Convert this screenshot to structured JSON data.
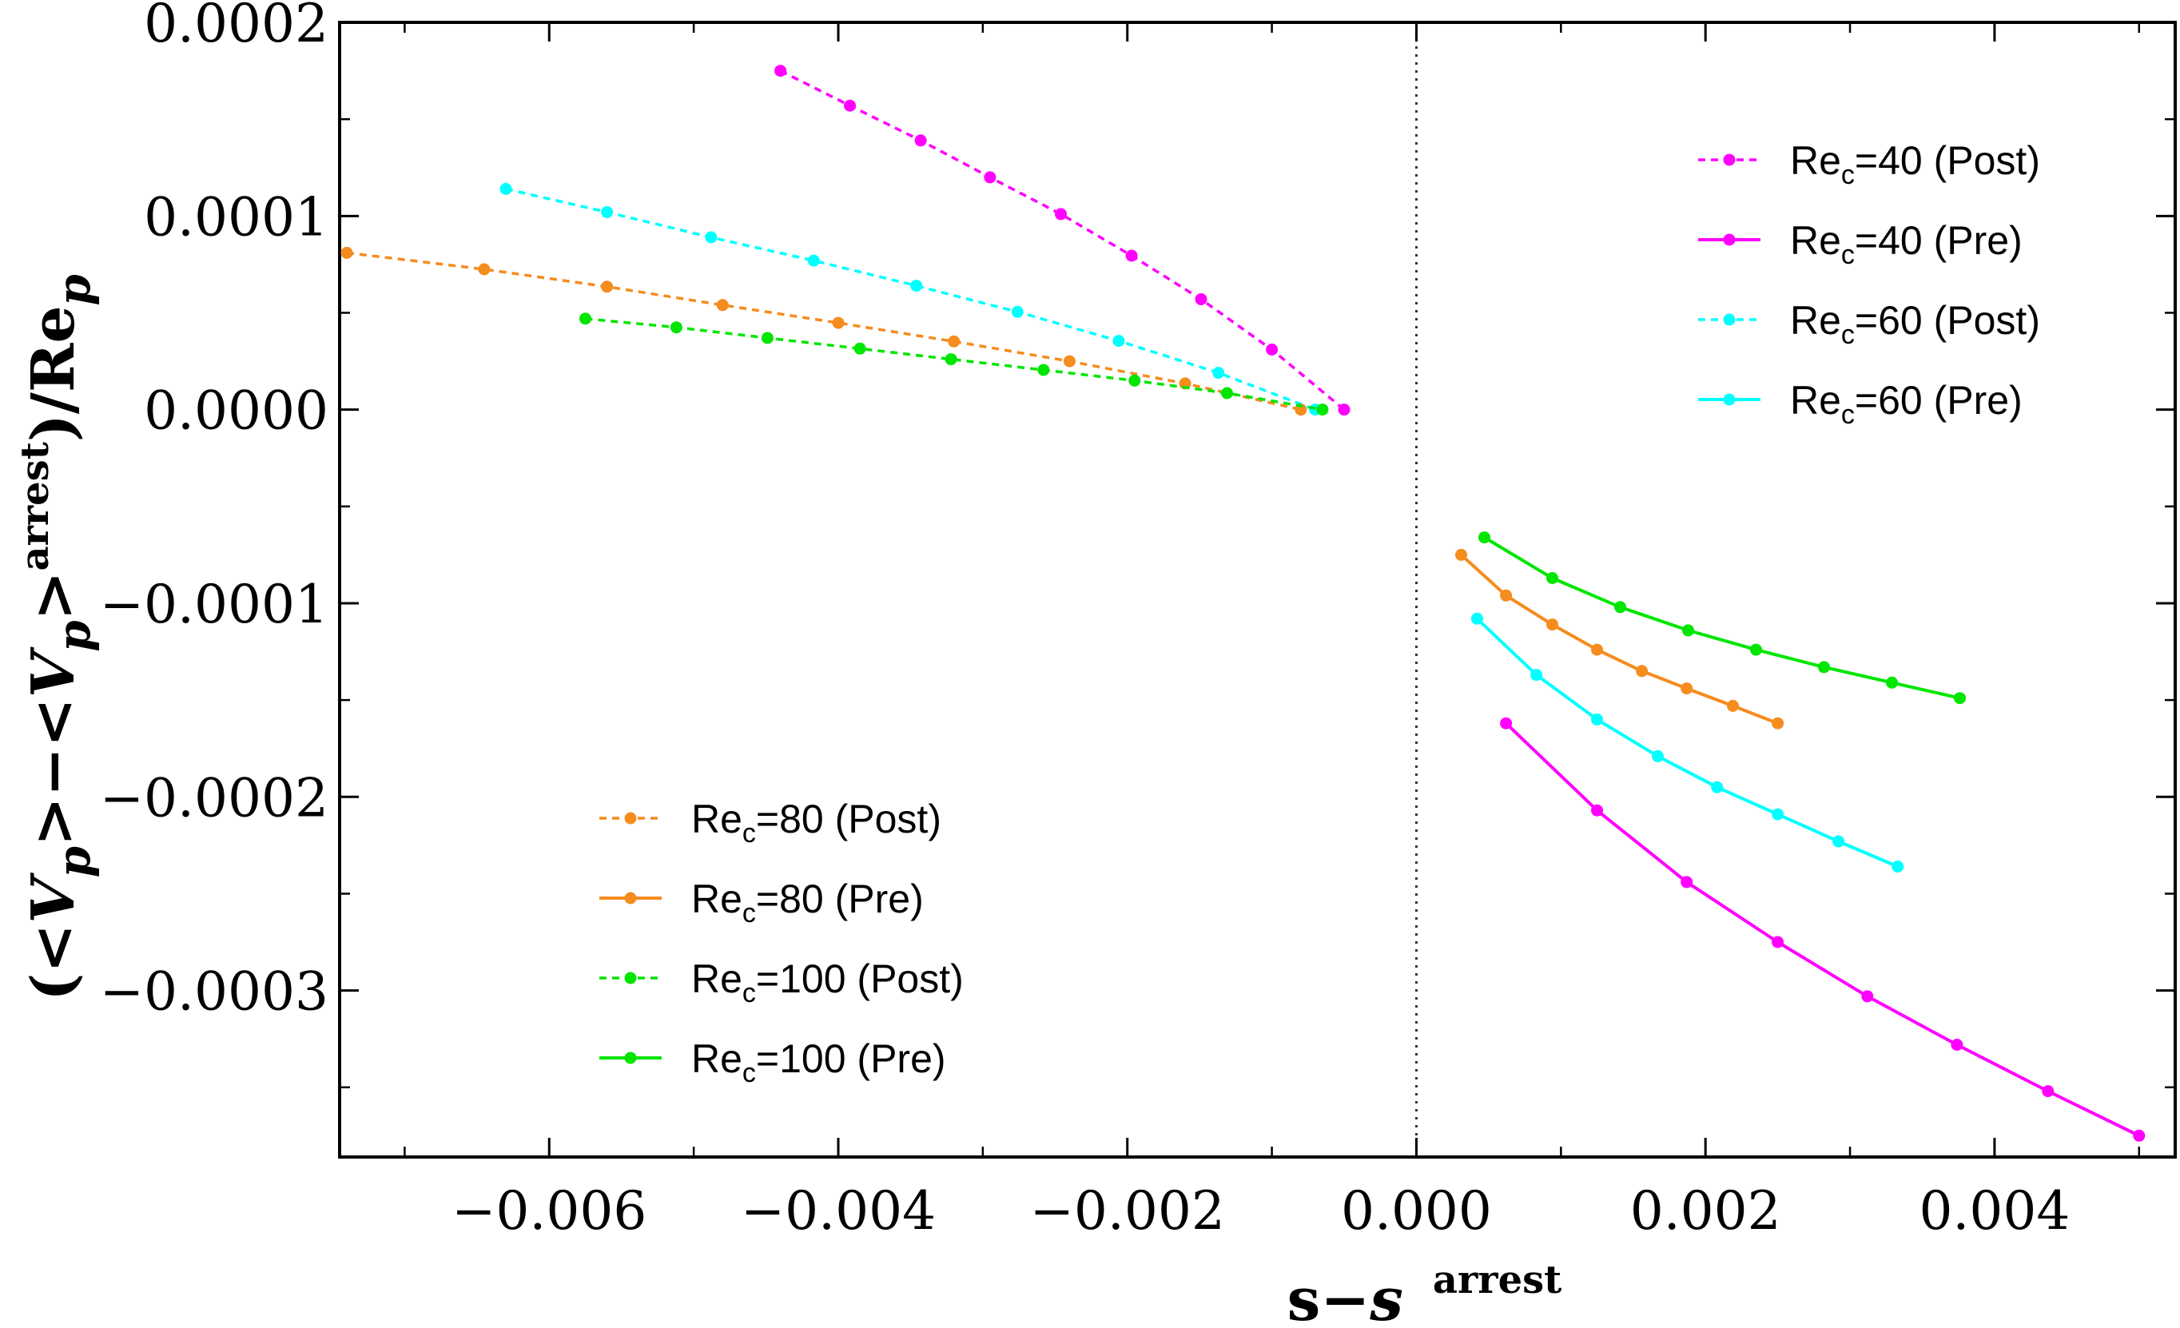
{
  "chart_data": {
    "type": "line",
    "title": "",
    "xlabel": "s−s_arrest",
    "ylabel": "(<Vp>−<Vp>arrest)/Rep",
    "xlim": [
      -0.00745,
      0.00525
    ],
    "ylim": [
      -0.000386,
      0.0002
    ],
    "x_ticks": [
      -0.006,
      -0.004,
      -0.002,
      0.0,
      0.002,
      0.004
    ],
    "x_tick_labels": [
      "−0.006",
      "−0.004",
      "−0.002",
      "0.000",
      "0.002",
      "0.004"
    ],
    "y_ticks": [
      0.0002,
      0.0001,
      0.0,
      -0.0001,
      -0.0002,
      -0.0003
    ],
    "y_tick_labels": [
      "0.0002",
      "0.0001",
      "0.0000",
      "−0.0001",
      "−0.0002",
      "−0.0003"
    ],
    "reference_line_x": 0.0,
    "series": [
      {
        "name": "Rec=40 (Post)",
        "label_main": "Re",
        "label_sub": "c",
        "label_rest": "=40 (Post)",
        "color": "#ff00ff",
        "style": "dashed",
        "x": [
          -0.0044,
          -0.00392,
          -0.00343,
          -0.00295,
          -0.00246,
          -0.00197,
          -0.00149,
          -0.001,
          -0.0005
        ],
        "y": [
          0.000175,
          0.000157,
          0.000139,
          0.00012,
          0.000101,
          7.95e-05,
          5.7e-05,
          3.1e-05,
          0.0
        ]
      },
      {
        "name": "Rec=40 (Pre)",
        "label_main": "Re",
        "label_sub": "c",
        "label_rest": "=40 (Pre)",
        "color": "#ff00ff",
        "style": "solid",
        "x": [
          0.00062,
          0.00125,
          0.00187,
          0.0025,
          0.00312,
          0.00374,
          0.00437,
          0.005
        ],
        "y": [
          -0.000162,
          -0.000207,
          -0.000244,
          -0.000275,
          -0.000303,
          -0.000328,
          -0.000352,
          -0.000375
        ]
      },
      {
        "name": "Rec=60 (Post)",
        "label_main": "Re",
        "label_sub": "c",
        "label_rest": "=60 (Post)",
        "color": "#00ffff",
        "style": "dashed",
        "x": [
          -0.0063,
          -0.0056,
          -0.00488,
          -0.00417,
          -0.00346,
          -0.00276,
          -0.00206,
          -0.00137,
          -0.0007
        ],
        "y": [
          0.000114,
          0.000102,
          8.9e-05,
          7.7e-05,
          6.4e-05,
          5.05e-05,
          3.55e-05,
          1.9e-05,
          0.0
        ]
      },
      {
        "name": "Rec=60 (Pre)",
        "label_main": "Re",
        "label_sub": "c",
        "label_rest": "=60 (Pre)",
        "color": "#00ffff",
        "style": "solid",
        "x": [
          0.00042,
          0.00083,
          0.00125,
          0.00167,
          0.00208,
          0.0025,
          0.00292,
          0.00333
        ],
        "y": [
          -0.000108,
          -0.000137,
          -0.00016,
          -0.000179,
          -0.000195,
          -0.000209,
          -0.000223,
          -0.000236
        ]
      },
      {
        "name": "Rec=80 (Post)",
        "label_main": "Re",
        "label_sub": "c",
        "label_rest": "=80 (Post)",
        "color": "#f58c1e",
        "style": "dashed",
        "x": [
          -0.0074,
          -0.00645,
          -0.0056,
          -0.0048,
          -0.004,
          -0.0032,
          -0.0024,
          -0.0016,
          -0.0008
        ],
        "y": [
          8.1e-05,
          7.25e-05,
          6.35e-05,
          5.4e-05,
          4.48e-05,
          3.52e-05,
          2.5e-05,
          1.35e-05,
          0.0
        ]
      },
      {
        "name": "Rec=80 (Pre)",
        "label_main": "Re",
        "label_sub": "c",
        "label_rest": "=80 (Pre)",
        "color": "#f58c1e",
        "style": "solid",
        "x": [
          0.00031,
          0.00062,
          0.00094,
          0.00125,
          0.00156,
          0.00187,
          0.00219,
          0.0025
        ],
        "y": [
          -7.5e-05,
          -9.6e-05,
          -0.000111,
          -0.000124,
          -0.000135,
          -0.000144,
          -0.000153,
          -0.000162
        ]
      },
      {
        "name": "Rec=100 (Post)",
        "label_main": "Re",
        "label_sub": "c",
        "label_rest": "=100 (Post)",
        "color": "#00e600",
        "style": "dashed",
        "x": [
          -0.00575,
          -0.00512,
          -0.00449,
          -0.00385,
          -0.00322,
          -0.00258,
          -0.00195,
          -0.00131,
          -0.00065
        ],
        "y": [
          4.7e-05,
          4.25e-05,
          3.7e-05,
          3.15e-05,
          2.6e-05,
          2.05e-05,
          1.5e-05,
          8.5e-06,
          0.0
        ]
      },
      {
        "name": "Rec=100 (Pre)",
        "label_main": "Re",
        "label_sub": "c",
        "label_rest": "=100 (Pre)",
        "color": "#00e600",
        "style": "solid",
        "x": [
          0.00047,
          0.00094,
          0.00141,
          0.00188,
          0.00235,
          0.00282,
          0.00329,
          0.00376
        ],
        "y": [
          -6.6e-05,
          -8.7e-05,
          -0.000102,
          -0.000114,
          -0.000124,
          -0.000133,
          -0.000141,
          -0.000149
        ]
      }
    ],
    "legends": [
      {
        "placement": "top-right",
        "series": [
          0,
          1,
          2,
          3
        ]
      },
      {
        "placement": "bottom-left",
        "series": [
          4,
          5,
          6,
          7
        ]
      }
    ]
  }
}
